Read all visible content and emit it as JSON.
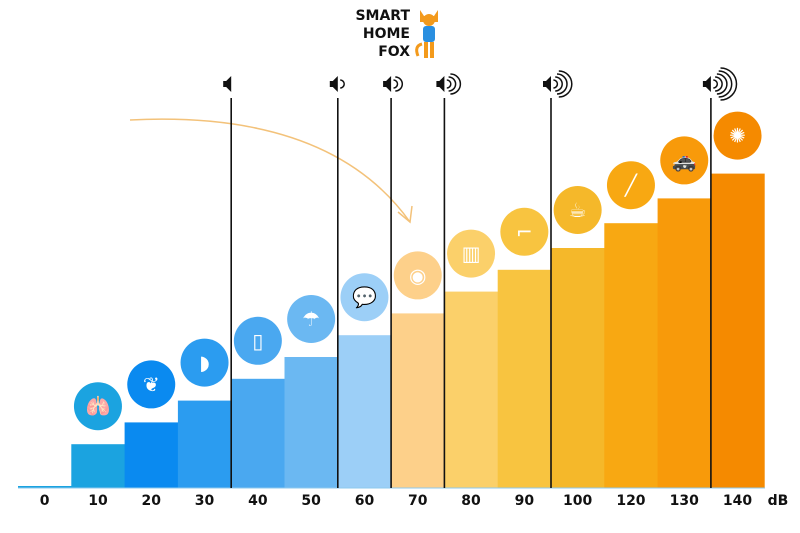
{
  "logo": {
    "line1": "SMART",
    "line2": "HOME",
    "line3": "FOX"
  },
  "chart_data": {
    "type": "bar",
    "title": "",
    "xlabel": "",
    "unit_label": "dB",
    "categories": [
      "0",
      "10",
      "20",
      "30",
      "40",
      "50",
      "60",
      "70",
      "80",
      "90",
      "100",
      "120",
      "130",
      "140"
    ],
    "values": [
      0,
      10,
      20,
      30,
      40,
      50,
      60,
      70,
      80,
      90,
      100,
      120,
      130,
      140
    ],
    "grid": false,
    "colors": [
      "#1ba3e0",
      "#1ba3e0",
      "#0a8af0",
      "#2b9cf0",
      "#4aa8f0",
      "#6bb8f2",
      "#9ccff7",
      "#fdd08a",
      "#fbd06a",
      "#f8c440",
      "#f5b82a",
      "#f8a812",
      "#f89a0a",
      "#f58a00"
    ],
    "icons": [
      "",
      "lungs-icon",
      "leaves-icon",
      "ear-icon",
      "fridge-icon",
      "rain-icon",
      "speech-bubbles-icon",
      "washing-machine-icon",
      "piano-icon",
      "hair-dryer-icon",
      "coffee-machine-icon",
      "trombone-icon",
      "police-car-icon",
      "fireworks-icon"
    ],
    "loudness_markers": [
      {
        "after": "30",
        "waves": 0
      },
      {
        "after": "50",
        "waves": 1
      },
      {
        "after": "60",
        "waves": 2
      },
      {
        "after": "70",
        "waves": 3
      },
      {
        "after": "90",
        "waves": 4
      },
      {
        "after": "130",
        "waves": 5
      }
    ]
  }
}
